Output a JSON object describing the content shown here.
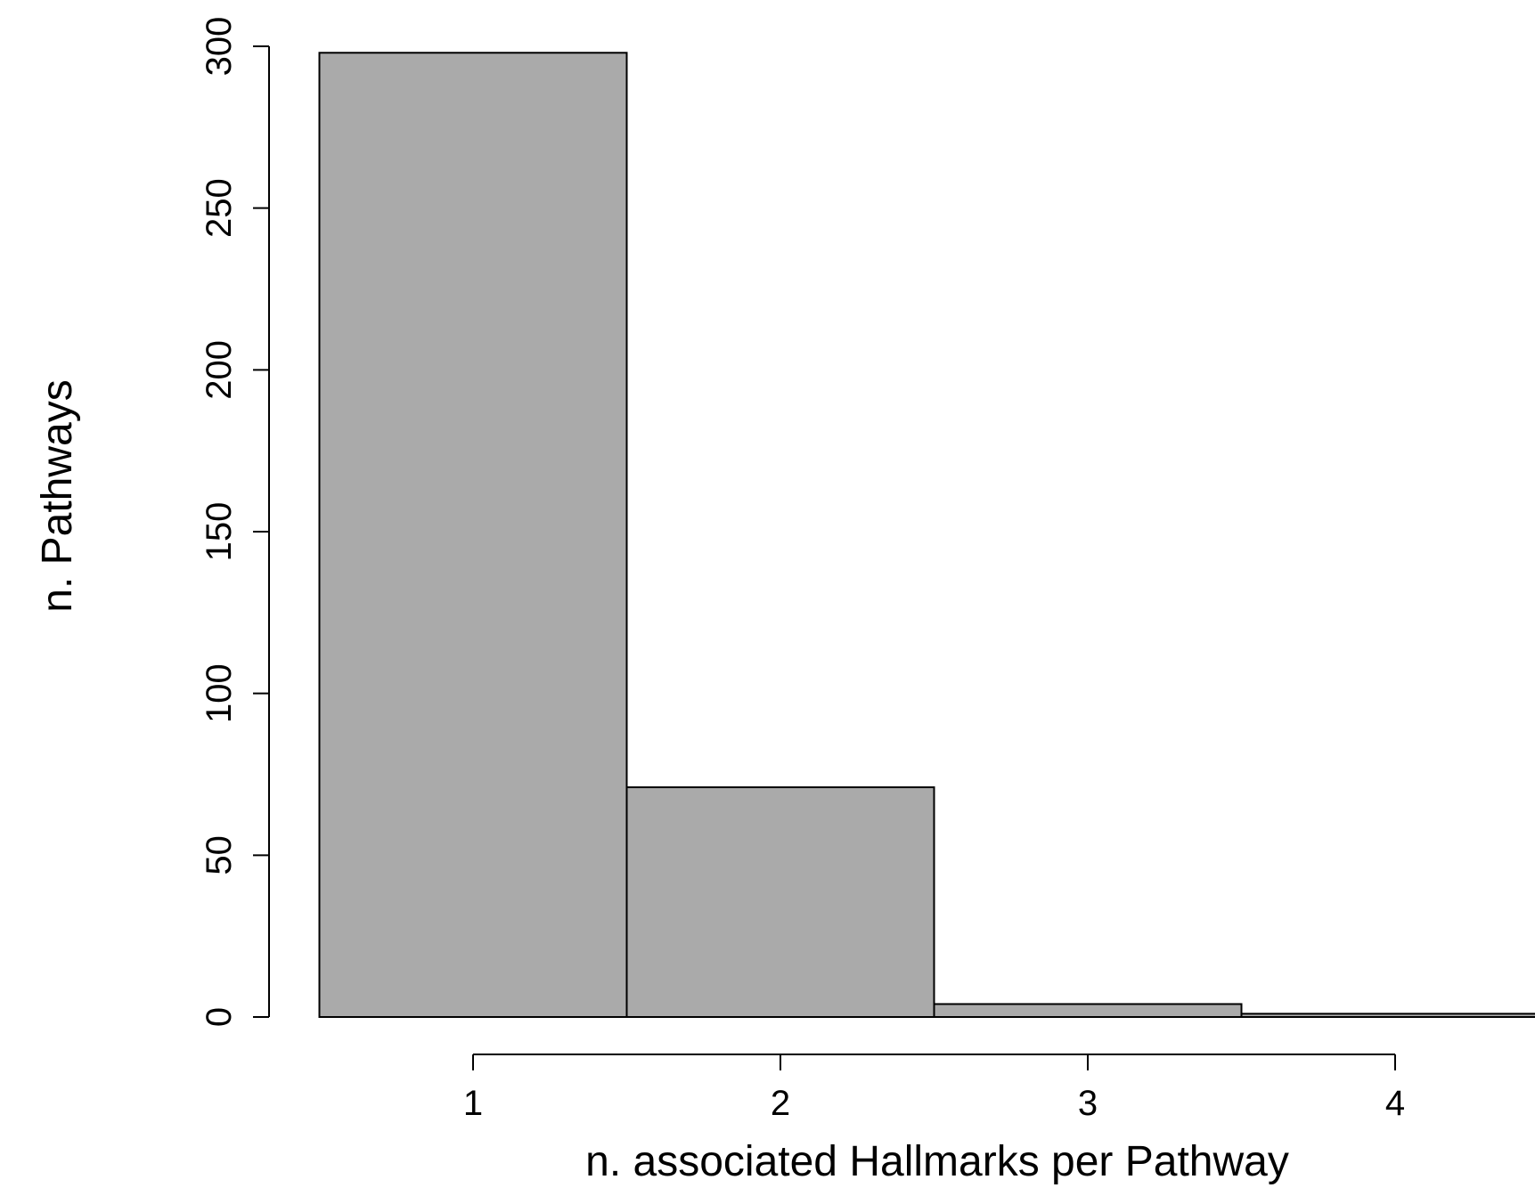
{
  "chart_data": {
    "type": "bar",
    "categories": [
      "1",
      "2",
      "3",
      "4"
    ],
    "values": [
      298,
      71,
      4,
      1
    ],
    "title": "",
    "xlabel": "n. associated Hallmarks per Pathway",
    "ylabel": "n. Pathways",
    "ylim": [
      0,
      300
    ],
    "y_ticks": [
      "0",
      "50",
      "100",
      "150",
      "200",
      "250",
      "300"
    ],
    "x_ticks": [
      "1",
      "2",
      "3",
      "4"
    ],
    "grid": false,
    "legend": "none",
    "bar_fill": "#aaaaaa",
    "bar_stroke": "#000000"
  }
}
